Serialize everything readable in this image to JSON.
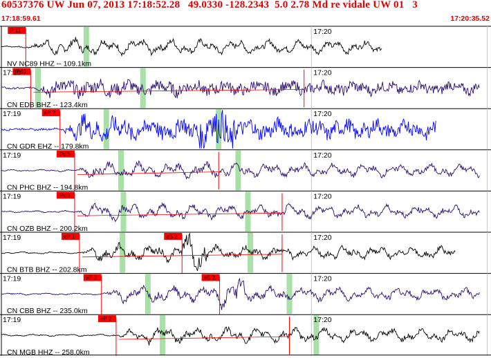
{
  "header": {
    "title": "60537376 UW Jun 07, 2013 17:18:52.28   49.0330 -128.2343  5.0 2.78 Md re vidale UW 01   3",
    "start_time": "17:18:59.61",
    "end_time": "17:20:35.52"
  },
  "colors": {
    "header_red": "#e00000",
    "pick_red": "#ff0000",
    "trace_default": "#000000",
    "trace_purple": "#2a0b6e",
    "trace_blue": "#0000ff",
    "window_green": "#a8e0a8",
    "grid": "#c8c8c8"
  },
  "panels": [
    {
      "station": "NV NC89 HHZ -- 109.1km",
      "minute_label_left": "",
      "minute_label_right": "17:20",
      "trace_color": "trace_default",
      "picks": [
        {
          "label": "P 11",
          "time": 0.05
        }
      ],
      "red_lines": [],
      "green_windows": [
        0.174
      ]
    },
    {
      "station": "CN EDB BHZ -- 123.4km",
      "minute_label_left": "17:19",
      "minute_label_right": "17:20",
      "trace_color": "trace_purple",
      "picks": [
        {
          "label": "iPd0",
          "time": 0.06
        }
      ],
      "red_lines": [
        0.62
      ],
      "green_windows": [
        0.075,
        0.29
      ]
    },
    {
      "station": "CN GDR EHZ -- 179.8km",
      "minute_label_left": "17:19",
      "minute_label_right": "17:20",
      "trace_color": "trace_blue",
      "picks": [
        {
          "label": "eP 2",
          "time": 0.12
        }
      ],
      "red_lines": [],
      "green_windows": [
        0.215,
        0.445
      ]
    },
    {
      "station": "CN PHC BHZ -- 194.8km",
      "minute_label_left": "17:19",
      "minute_label_right": "17:20",
      "trace_color": "trace_purple",
      "picks": [
        {
          "label": "iPd0",
          "time": 0.15
        }
      ],
      "red_lines": [
        0.445
      ],
      "green_windows": [
        0.245,
        0.485
      ]
    },
    {
      "station": "CN OZB BHZ -- 200.2km",
      "minute_label_left": "17:19",
      "minute_label_right": "17:20",
      "trace_color": "trace_purple",
      "picks": [
        {
          "label": "iPd0",
          "time": 0.15
        }
      ],
      "red_lines": [
        0.575
      ],
      "green_windows": [
        0.25,
        0.505
      ]
    },
    {
      "station": "CN BTB BHZ -- 202.8km",
      "minute_label_left": "17:19",
      "minute_label_right": "17:20",
      "trace_color": "trace_default",
      "picks": [
        {
          "label": "eP 1",
          "time": 0.16
        },
        {
          "label": "eS 2",
          "time": 0.37
        }
      ],
      "red_lines": [
        0.575
      ],
      "green_windows": [
        0.248,
        0.51
      ]
    },
    {
      "station": "CN CBB BHZ -- 235.0km",
      "minute_label_left": "17:19",
      "minute_label_right": "17:20",
      "trace_color": "trace_purple",
      "picks": [
        {
          "label": "eP 2",
          "time": 0.205
        },
        {
          "label": "eS 2",
          "time": 0.447
        }
      ],
      "red_lines": [],
      "green_windows": [
        0.3,
        0.59
      ]
    },
    {
      "station": "CN MGB HHZ -- 258.0km",
      "minute_label_left": "17:19",
      "minute_label_right": "17:20",
      "trace_color": "trace_default",
      "picks": [
        {
          "label": "eP 2",
          "time": 0.235
        }
      ],
      "red_lines": [
        0.59
      ],
      "green_windows": [
        0.33,
        0.645
      ]
    }
  ]
}
